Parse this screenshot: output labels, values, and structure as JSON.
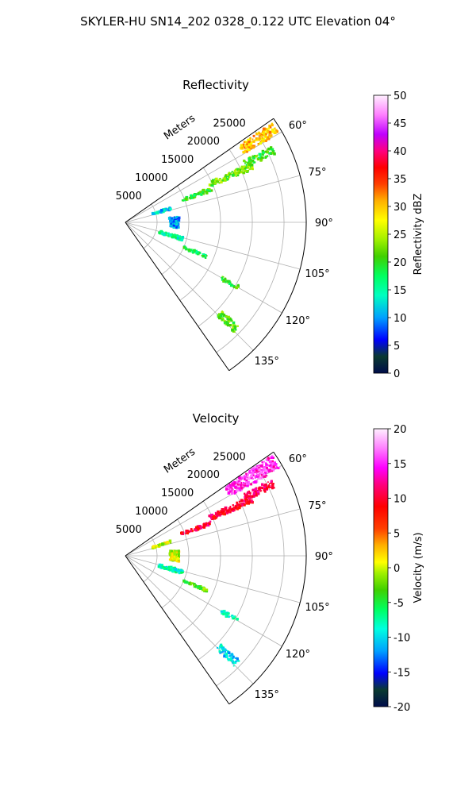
{
  "suptitle": "SKYLER-HU  SN14_202  0328_0.122 UTC Elevation 04°",
  "chart_data": [
    {
      "type": "heatmap",
      "title": "Reflectivity",
      "r_axis_label": "Meters",
      "r_ticks": [
        "5000",
        "10000",
        "15000",
        "20000",
        "25000"
      ],
      "r_tick_values": [
        5000,
        10000,
        15000,
        20000,
        25000
      ],
      "r_max": 28500,
      "theta_ticks": [
        "60°",
        "75°",
        "90°",
        "105°",
        "120°",
        "135°"
      ],
      "theta_tick_values": [
        60,
        75,
        90,
        105,
        120,
        135
      ],
      "theta_range": [
        55,
        145
      ],
      "grid": true,
      "colorbar": {
        "label": "Reflectivity dBZ",
        "ticks": [
          "0",
          "5",
          "10",
          "15",
          "20",
          "25",
          "30",
          "35",
          "40",
          "45",
          "50"
        ],
        "range": [
          0,
          50
        ]
      },
      "echoes": [
        {
          "az": 58,
          "r": [
            21500,
            28000
          ],
          "width": 4,
          "value": 30
        },
        {
          "az": 64,
          "r": [
            21000,
            26000
          ],
          "width": 3,
          "value": 20
        },
        {
          "az": 66,
          "r": [
            14500,
            22000
          ],
          "width": 3,
          "value": 22
        },
        {
          "az": 69,
          "r": [
            9500,
            14500
          ],
          "width": 2.5,
          "value": 20
        },
        {
          "az": 73,
          "r": [
            4500,
            7500
          ],
          "width": 3,
          "value": 12
        },
        {
          "az": 90,
          "r": [
            7000,
            8500
          ],
          "width": 12,
          "value": 10
        },
        {
          "az": 106,
          "r": [
            5500,
            9500
          ],
          "width": 4,
          "value": 15
        },
        {
          "az": 113,
          "r": [
            10000,
            14000
          ],
          "width": 2,
          "value": 18
        },
        {
          "az": 120,
          "r": [
            17500,
            20500
          ],
          "width": 2,
          "value": 20
        },
        {
          "az": 134,
          "r": [
            20500,
            24500
          ],
          "width": 3,
          "value": 22
        }
      ]
    },
    {
      "type": "heatmap",
      "title": "Velocity",
      "r_axis_label": "Meters",
      "r_ticks": [
        "5000",
        "10000",
        "15000",
        "20000",
        "25000"
      ],
      "r_tick_values": [
        5000,
        10000,
        15000,
        20000,
        25000
      ],
      "r_max": 28500,
      "theta_ticks": [
        "60°",
        "75°",
        "90°",
        "105°",
        "120°",
        "135°"
      ],
      "theta_tick_values": [
        60,
        75,
        90,
        105,
        120,
        135
      ],
      "theta_range": [
        55,
        145
      ],
      "grid": true,
      "colorbar": {
        "label": "Velocity (m/s)",
        "ticks": [
          "-20",
          "-15",
          "-10",
          "-5",
          "0",
          "5",
          "10",
          "15",
          "20"
        ],
        "range": [
          -20,
          20
        ]
      },
      "echoes": [
        {
          "az": 58,
          "r": [
            19000,
            28000
          ],
          "width": 5,
          "value": 15
        },
        {
          "az": 64,
          "r": [
            21000,
            26000
          ],
          "width": 3,
          "value": 11
        },
        {
          "az": 66,
          "r": [
            14500,
            22000
          ],
          "width": 3,
          "value": 10
        },
        {
          "az": 69,
          "r": [
            9500,
            14500
          ],
          "width": 2.5,
          "value": 10
        },
        {
          "az": 73,
          "r": [
            4500,
            7500
          ],
          "width": 3,
          "value": 0
        },
        {
          "az": 90,
          "r": [
            7000,
            8500
          ],
          "width": 12,
          "value": 0
        },
        {
          "az": 106,
          "r": [
            5500,
            9500
          ],
          "width": 4,
          "value": -8
        },
        {
          "az": 113,
          "r": [
            10000,
            14000
          ],
          "width": 2,
          "value": -3
        },
        {
          "az": 120,
          "r": [
            17500,
            20500
          ],
          "width": 2,
          "value": -8
        },
        {
          "az": 134,
          "r": [
            20500,
            24500
          ],
          "width": 3,
          "value": -10
        }
      ]
    }
  ]
}
